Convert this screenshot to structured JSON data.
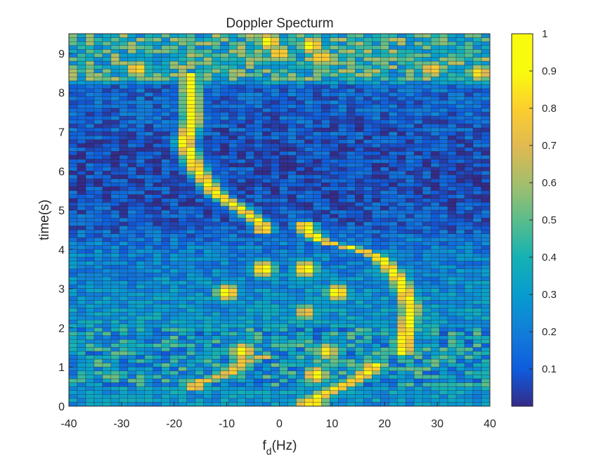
{
  "chart_data": {
    "type": "heatmap",
    "title": "Doppler Specturm",
    "xlabel": "f",
    "xlabel_subscript": "d",
    "xlabel_suffix": "(Hz)",
    "ylabel": "time(s)",
    "xlim": [
      -40,
      40
    ],
    "ylim": [
      0,
      9.5
    ],
    "xticks": [
      -40,
      -30,
      -20,
      -10,
      0,
      10,
      20,
      30,
      40
    ],
    "yticks": [
      0,
      1,
      2,
      3,
      4,
      5,
      6,
      7,
      8,
      9
    ],
    "x_bin_width_hz": 1.6,
    "y_bin_height_s": 0.1,
    "colormap": "parula",
    "clim": [
      0,
      1
    ],
    "colorbar": {
      "ticks": [
        0.1,
        0.2,
        0.3,
        0.4,
        0.5,
        0.6,
        0.7,
        0.8,
        0.9,
        1
      ],
      "tick_labels": [
        "0.1",
        "0.2",
        "0.3",
        "0.4",
        "0.5",
        "0.6",
        "0.7",
        "0.8",
        "0.9",
        "1"
      ]
    },
    "background_level": {
      "by_time": [
        {
          "t": 0.0,
          "v": 0.28
        },
        {
          "t": 1.0,
          "v": 0.32
        },
        {
          "t": 2.0,
          "v": 0.3
        },
        {
          "t": 3.0,
          "v": 0.26
        },
        {
          "t": 4.0,
          "v": 0.2
        },
        {
          "t": 4.6,
          "v": 0.12
        },
        {
          "t": 5.5,
          "v": 0.08
        },
        {
          "t": 6.5,
          "v": 0.08
        },
        {
          "t": 7.5,
          "v": 0.13
        },
        {
          "t": 8.2,
          "v": 0.14
        },
        {
          "t": 8.3,
          "v": 0.42
        },
        {
          "t": 9.5,
          "v": 0.42
        }
      ]
    },
    "ridges": [
      {
        "name": "",
        "points": [
          {
            "t": 8.3,
            "f": -17.0
          },
          {
            "t": 7.3,
            "f": -16.5
          },
          {
            "t": 6.7,
            "f": -18.0
          },
          {
            "t": 6.0,
            "f": -15.5
          },
          {
            "t": 5.4,
            "f": -12.0
          },
          {
            "t": 5.0,
            "f": -7.0
          },
          {
            "t": 4.6,
            "f": -3.0
          }
        ],
        "peak": 1.0,
        "width_hz": 1.5
      },
      {
        "name": "",
        "points": [
          {
            "t": 4.5,
            "f": 5.0
          },
          {
            "t": 4.2,
            "f": 8.0
          },
          {
            "t": 4.0,
            "f": 15.0
          },
          {
            "t": 3.8,
            "f": 19.0
          },
          {
            "t": 3.2,
            "f": 23.0
          },
          {
            "t": 2.5,
            "f": 25.0
          },
          {
            "t": 1.5,
            "f": 23.5
          }
        ],
        "peak": 1.0,
        "width_hz": 1.6
      },
      {
        "name": "",
        "points": [
          {
            "t": 0.1,
            "f": 5.0
          },
          {
            "t": 0.4,
            "f": 10.0
          },
          {
            "t": 0.7,
            "f": 15.0
          },
          {
            "t": 1.0,
            "f": 18.0
          }
        ],
        "peak": 0.95,
        "width_hz": 2.0
      },
      {
        "name": "",
        "points": [
          {
            "t": 0.6,
            "f": -16.0
          },
          {
            "t": 0.8,
            "f": -10.0
          },
          {
            "t": 1.2,
            "f": -6.0
          },
          {
            "t": 1.2,
            "f": -3.0
          }
        ],
        "peak": 0.85,
        "width_hz": 2.0
      }
    ],
    "hotspots": [
      {
        "t": 9.3,
        "f": -2.0,
        "v": 1.0
      },
      {
        "t": 9.2,
        "f": 6.0,
        "v": 1.0
      },
      {
        "t": 9.0,
        "f": 0.0,
        "v": 0.9
      },
      {
        "t": 8.9,
        "f": 8.0,
        "v": 0.9
      },
      {
        "t": 8.6,
        "f": -27.0,
        "v": 0.9
      },
      {
        "t": 8.6,
        "f": 29.0,
        "v": 0.85
      },
      {
        "t": 8.5,
        "f": 38.0,
        "v": 0.9
      },
      {
        "t": 8.5,
        "f": -40.0,
        "v": 0.7
      },
      {
        "t": 3.5,
        "f": -3.0,
        "v": 1.0
      },
      {
        "t": 3.5,
        "f": 5.0,
        "v": 1.0
      },
      {
        "t": 2.9,
        "f": -10.0,
        "v": 1.0
      },
      {
        "t": 2.9,
        "f": 11.0,
        "v": 1.0
      },
      {
        "t": 2.4,
        "f": 5.0,
        "v": 0.8
      },
      {
        "t": 1.4,
        "f": -7.0,
        "v": 1.0
      },
      {
        "t": 1.4,
        "f": 9.0,
        "v": 0.9
      },
      {
        "t": 0.8,
        "f": 7.0,
        "v": 1.0
      },
      {
        "t": 0.1,
        "f": 7.0,
        "v": 0.9
      }
    ]
  }
}
